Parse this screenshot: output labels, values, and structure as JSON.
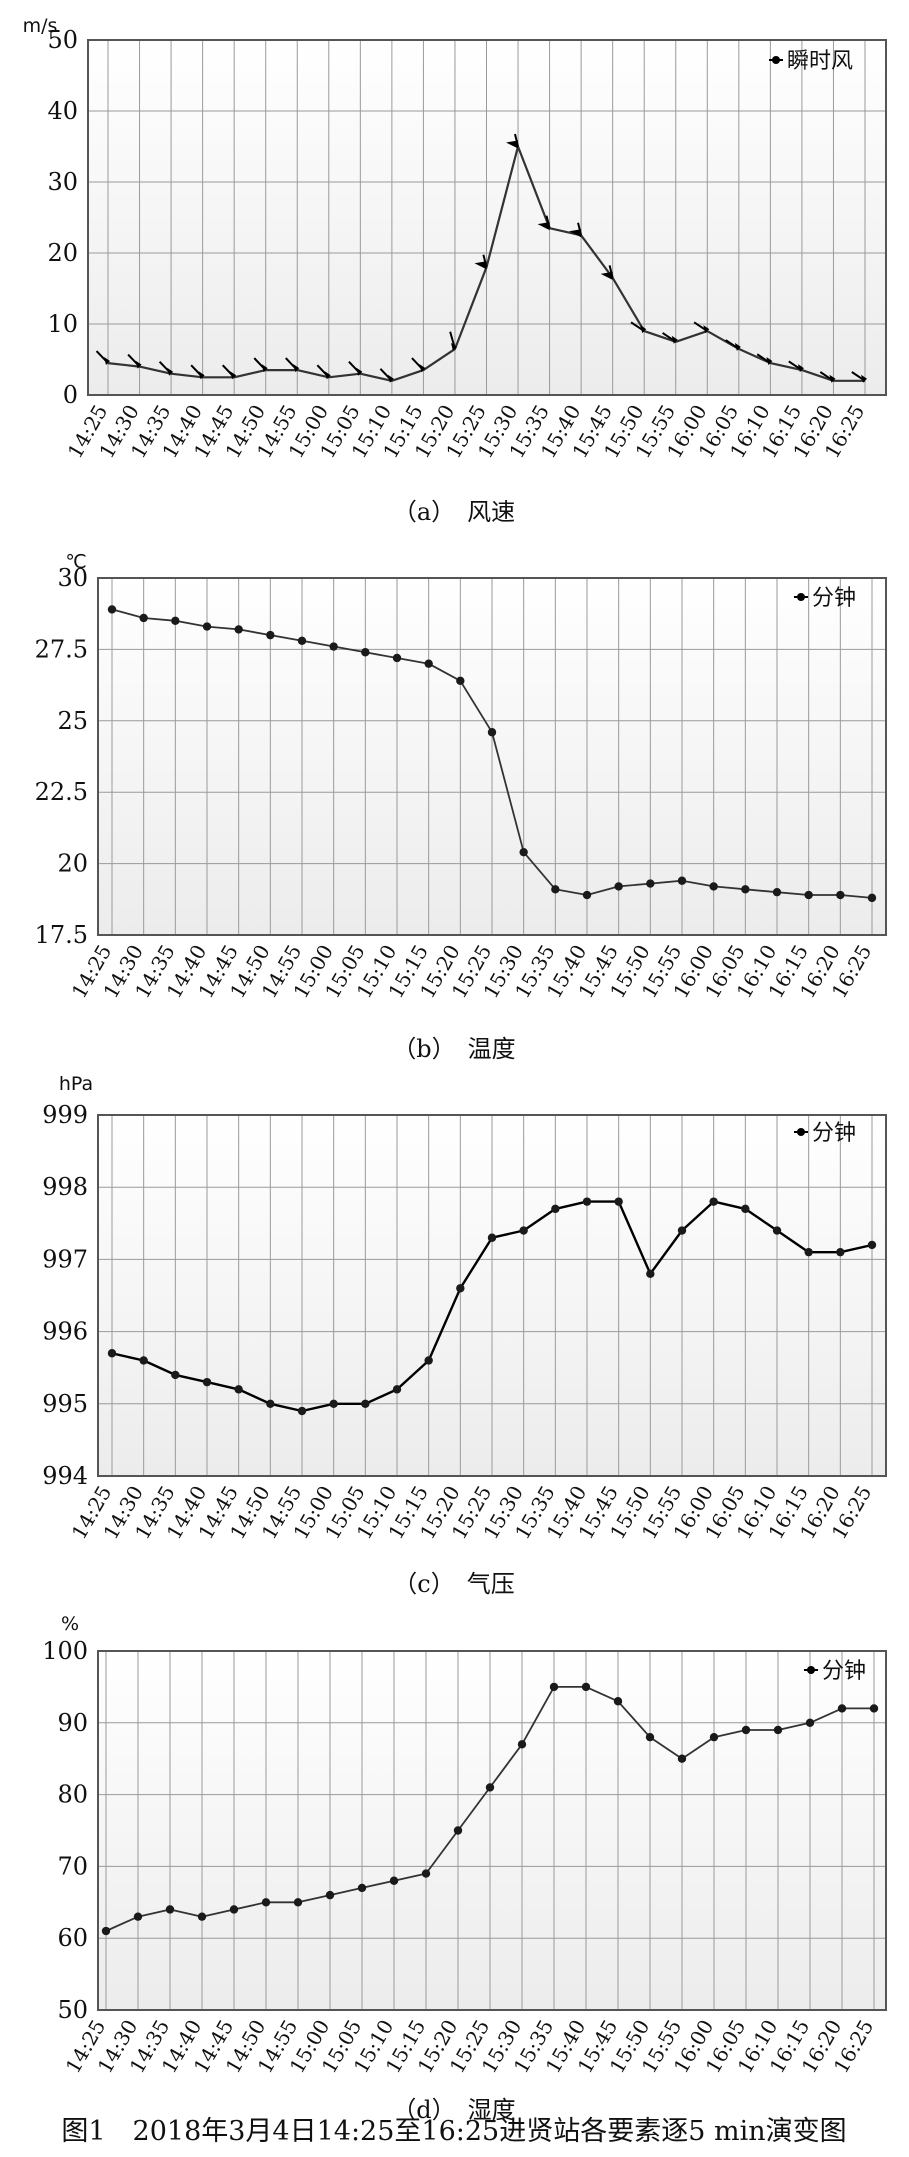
{
  "figure_caption": "图1　2018年3月4日14:25至16:25进贤站各要素逐5 min演变图",
  "chart_data": [
    {
      "type": "line",
      "caption": "（a）　风速",
      "unit": "m/s",
      "legend": "瞬时风",
      "legend_position": "top-right",
      "grid": true,
      "categories": [
        "14:25",
        "14:30",
        "14:35",
        "14:40",
        "14:45",
        "14:50",
        "14:55",
        "15:00",
        "15:05",
        "15:10",
        "15:15",
        "15:20",
        "15:25",
        "15:30",
        "15:35",
        "15:40",
        "15:45",
        "15:50",
        "15:55",
        "16:00",
        "16:05",
        "16:10",
        "16:15",
        "16:20",
        "16:25"
      ],
      "y_ticks": [
        "0",
        "10",
        "20",
        "30",
        "40",
        "50"
      ],
      "ylim": [
        0,
        50
      ],
      "series": [
        {
          "name": "瞬时风",
          "values": [
            4.5,
            4,
            3,
            2.5,
            2.5,
            3.5,
            3.5,
            2.5,
            3,
            2,
            3.5,
            6.5,
            18,
            35,
            23.5,
            22.5,
            16.5,
            9,
            7.5,
            9,
            6.5,
            4.5,
            3.5,
            2,
            2
          ]
        }
      ],
      "wind_barb_markers": true
    },
    {
      "type": "line",
      "caption": "（b）　温度",
      "unit": "℃",
      "legend": "分钟",
      "legend_position": "top-right",
      "grid": true,
      "categories": [
        "14:25",
        "14:30",
        "14:35",
        "14:40",
        "14:45",
        "14:50",
        "14:55",
        "15:00",
        "15:05",
        "15:10",
        "15:15",
        "15:20",
        "15:25",
        "15:30",
        "15:35",
        "15:40",
        "15:45",
        "15:50",
        "15:55",
        "16:00",
        "16:05",
        "16:10",
        "16:15",
        "16:20",
        "16:25"
      ],
      "y_ticks": [
        "17.5",
        "20",
        "22.5",
        "25",
        "27.5",
        "30"
      ],
      "ylim": [
        17.5,
        30
      ],
      "series": [
        {
          "name": "分钟",
          "values": [
            28.9,
            28.6,
            28.5,
            28.3,
            28.2,
            28.0,
            27.8,
            27.6,
            27.4,
            27.2,
            27.0,
            26.4,
            24.6,
            20.4,
            19.1,
            18.9,
            19.2,
            19.3,
            19.4,
            19.2,
            19.1,
            19.0,
            18.9,
            18.9,
            18.8
          ]
        }
      ]
    },
    {
      "type": "line",
      "caption": "（c）　气压",
      "unit": "hPa",
      "legend": "分钟",
      "legend_position": "top-right",
      "grid": true,
      "categories": [
        "14:25",
        "14:30",
        "14:35",
        "14:40",
        "14:45",
        "14:50",
        "14:55",
        "15:00",
        "15:05",
        "15:10",
        "15:15",
        "15:20",
        "15:25",
        "15:30",
        "15:35",
        "15:40",
        "15:45",
        "15:50",
        "15:55",
        "16:00",
        "16:05",
        "16:10",
        "16:15",
        "16:20",
        "16:25"
      ],
      "y_ticks": [
        "994",
        "995",
        "996",
        "997",
        "998",
        "999"
      ],
      "ylim": [
        994,
        999
      ],
      "series": [
        {
          "name": "分钟",
          "values": [
            995.7,
            995.6,
            995.4,
            995.3,
            995.2,
            995.0,
            994.9,
            995.0,
            995.0,
            995.2,
            995.6,
            996.6,
            997.3,
            997.4,
            997.7,
            997.8,
            997.8,
            996.8,
            997.4,
            997.8,
            997.7,
            997.4,
            997.1,
            997.1,
            997.2
          ]
        }
      ]
    },
    {
      "type": "line",
      "caption": "（d）　湿度",
      "unit": "%",
      "legend": "分钟",
      "legend_position": "top-right",
      "grid": true,
      "categories": [
        "14:25",
        "14:30",
        "14:35",
        "14:40",
        "14:45",
        "14:50",
        "14:55",
        "15:00",
        "15:05",
        "15:10",
        "15:15",
        "15:20",
        "15:25",
        "15:30",
        "15:35",
        "15:40",
        "15:45",
        "15:50",
        "15:55",
        "16:00",
        "16:05",
        "16:10",
        "16:15",
        "16:20",
        "16:25"
      ],
      "y_ticks": [
        "50",
        "60",
        "70",
        "80",
        "90",
        "100"
      ],
      "ylim": [
        50,
        100
      ],
      "series": [
        {
          "name": "分钟",
          "values": [
            61,
            63,
            64,
            63,
            64,
            65,
            65,
            66,
            67,
            68,
            69,
            75,
            81,
            87,
            95,
            95,
            93,
            88,
            85,
            88,
            89,
            89,
            90,
            92,
            92
          ]
        }
      ]
    }
  ]
}
